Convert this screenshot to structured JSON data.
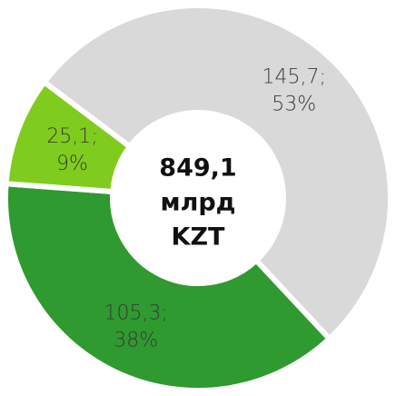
{
  "chart_data": {
    "type": "donut",
    "center_text": [
      "849,1",
      "млрд",
      "KZT"
    ],
    "categories": [
      null,
      null,
      null
    ],
    "values": [
      145.7,
      105.3,
      25.1
    ],
    "value_labels": [
      "145,7;",
      "105,3;",
      "25,1;"
    ],
    "percent_labels": [
      "53%",
      "38%",
      "9%"
    ],
    "colors": [
      "#d9d9d9",
      "#2f9a2f",
      "#7fcc1f"
    ]
  }
}
